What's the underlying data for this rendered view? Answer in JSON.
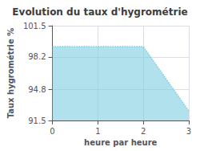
{
  "chart_data": {
    "type": "line",
    "title": "Evolution du taux d'hygrométrie",
    "xlabel": "heure par heure",
    "ylabel": "Taux hygrométrie %",
    "x": [
      0,
      2,
      3
    ],
    "values": [
      99.3,
      99.3,
      92.5
    ],
    "xlim": [
      0,
      3
    ],
    "xticks": [
      0,
      1,
      2,
      3
    ],
    "ylim": [
      91.5,
      101.5
    ],
    "yticks": [
      91.5,
      94.8,
      98.2,
      101.5
    ],
    "grid": true,
    "color": "#7dcde0",
    "line_style": "dotted"
  }
}
